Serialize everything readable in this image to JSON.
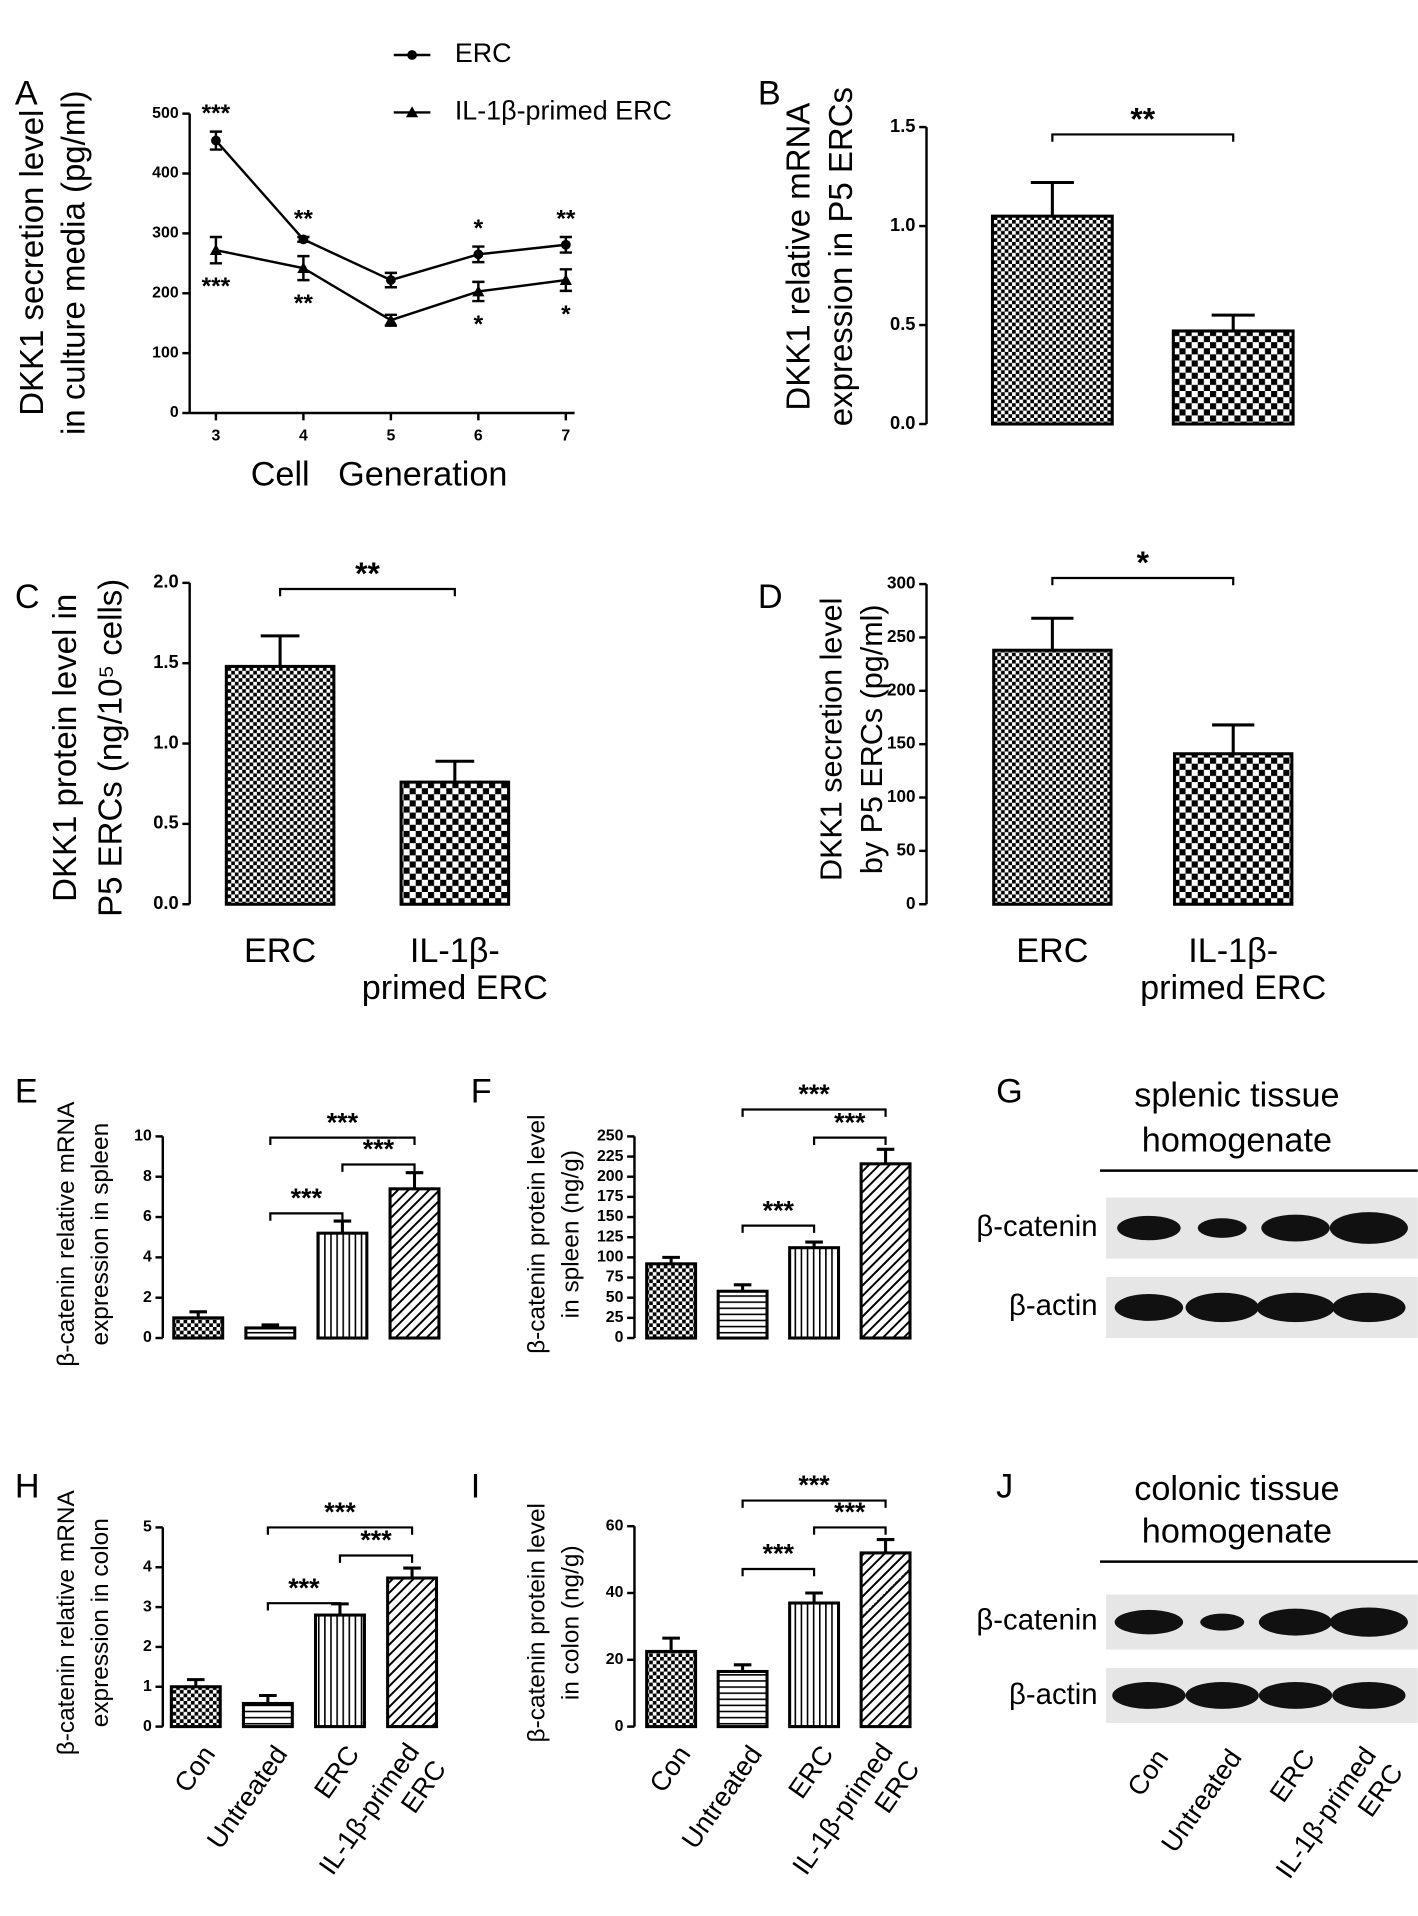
{
  "chart_data": [
    {
      "type": "line",
      "panel": "A",
      "y_label": [
        "DKK1 secretion level",
        "in culture media (pg/ml)"
      ],
      "x_label": "Cell   Generation",
      "x": [
        3,
        4,
        5,
        6,
        7
      ],
      "xlim": [
        2.7,
        7.1
      ],
      "xticks": [
        3,
        4,
        5,
        6,
        7
      ],
      "ylim": [
        0,
        500
      ],
      "yticks": [
        0,
        100,
        200,
        300,
        400,
        500
      ],
      "series": [
        {
          "name": "ERC",
          "marker": "circle",
          "color": "#000000",
          "values": [
            455,
            290,
            222,
            265,
            281
          ],
          "errors": [
            15,
            4,
            12,
            13,
            13
          ],
          "significance": [
            "***",
            "**",
            null,
            "*",
            "**"
          ]
        },
        {
          "name": "IL-1β-primed ERC",
          "marker": "triangle",
          "color": "#000000",
          "values": [
            272,
            242,
            155,
            203,
            222
          ],
          "errors": [
            22,
            20,
            9,
            16,
            18
          ],
          "significance": [
            "***",
            "**",
            null,
            "*",
            "*"
          ]
        }
      ]
    },
    {
      "type": "bar",
      "panel": "B",
      "y_label": [
        "DKK1 relative mRNA",
        "expression in P5 ERCs"
      ],
      "values": [
        1.05,
        0.47
      ],
      "errors": [
        0.17,
        0.08
      ],
      "ylim": [
        0,
        1.5
      ],
      "yticks": [
        {
          "value": 0,
          "label": "0.0"
        },
        {
          "value": 0.5,
          "label": "0.5"
        },
        {
          "value": 1,
          "label": "1.0"
        },
        {
          "value": 1.5,
          "label": "1.5"
        }
      ],
      "comparisons": [
        {
          "label": "**",
          "between": [
            0,
            1
          ]
        }
      ]
    },
    {
      "type": "bar",
      "panel": "C",
      "y_label": [
        "DKK1 protein level in",
        "P5 ERCs (ng/10⁵ cells)"
      ],
      "categories": [
        [
          "ERC"
        ],
        [
          "IL-1β-",
          "primed ERC"
        ]
      ],
      "values": [
        1.48,
        0.76
      ],
      "errors": [
        0.19,
        0.13
      ],
      "ylim": [
        0,
        2
      ],
      "yticks": [
        {
          "value": 0,
          "label": "0.0"
        },
        {
          "value": 0.5,
          "label": "0.5"
        },
        {
          "value": 1,
          "label": "1.0"
        },
        {
          "value": 1.5,
          "label": "1.5"
        },
        {
          "value": 2,
          "label": "2.0"
        }
      ],
      "comparisons": [
        {
          "label": "**",
          "between": [
            0,
            1
          ]
        }
      ]
    },
    {
      "type": "bar",
      "panel": "D",
      "y_label": [
        "DKK1 secretion level",
        "by P5 ERCs (pg/ml)"
      ],
      "categories": [
        [
          "ERC"
        ],
        [
          "IL-1β-",
          "primed ERC"
        ]
      ],
      "values": [
        238,
        141
      ],
      "errors": [
        30,
        27
      ],
      "ylim": [
        0,
        300
      ],
      "yticks": [
        0,
        50,
        100,
        150,
        200,
        250,
        300
      ],
      "comparisons": [
        {
          "label": "*",
          "between": [
            0,
            1
          ]
        }
      ]
    },
    {
      "type": "bar",
      "panel": "E",
      "y_label": [
        "β-catenin relative mRNA",
        "expression in spleen"
      ],
      "values": [
        1.0,
        0.5,
        5.2,
        7.4
      ],
      "errors": [
        0.3,
        0.15,
        0.6,
        0.8
      ],
      "ylim": [
        0,
        10
      ],
      "yticks": [
        0,
        2,
        4,
        6,
        8,
        10
      ],
      "comparisons": [
        {
          "label": "***",
          "between": [
            1,
            2
          ]
        },
        {
          "label": "***",
          "between": [
            2,
            3
          ]
        },
        {
          "label": "***",
          "between": [
            1,
            3
          ]
        }
      ]
    },
    {
      "type": "bar",
      "panel": "F",
      "y_label": [
        "β-catenin protein level",
        "in spleen (ng/g)"
      ],
      "values": [
        92,
        58,
        112,
        216
      ],
      "errors": [
        8,
        8,
        7,
        18
      ],
      "ylim": [
        0,
        250
      ],
      "yticks": [
        0,
        25,
        50,
        75,
        100,
        125,
        150,
        175,
        200,
        225,
        250
      ],
      "comparisons": [
        {
          "label": "***",
          "between": [
            1,
            2
          ]
        },
        {
          "label": "***",
          "between": [
            2,
            3
          ]
        },
        {
          "label": "***",
          "between": [
            1,
            3
          ]
        }
      ]
    },
    {
      "type": "bar",
      "panel": "H",
      "y_label": [
        "β-catenin relative mRNA",
        "expression in colon"
      ],
      "categories": [
        [
          "Con"
        ],
        [
          "Untreated"
        ],
        [
          "ERC"
        ],
        [
          "IL-1β-primed",
          "ERC"
        ]
      ],
      "values": [
        1.0,
        0.58,
        2.8,
        3.73
      ],
      "errors": [
        0.18,
        0.2,
        0.28,
        0.25
      ],
      "ylim": [
        0,
        5
      ],
      "yticks": [
        0,
        1,
        2,
        3,
        4,
        5
      ],
      "comparisons": [
        {
          "label": "***",
          "between": [
            1,
            2
          ]
        },
        {
          "label": "***",
          "between": [
            2,
            3
          ]
        },
        {
          "label": "***",
          "between": [
            1,
            3
          ]
        }
      ]
    },
    {
      "type": "bar",
      "panel": "I",
      "y_label": [
        "β-catenin protein level",
        "in colon (ng/g)"
      ],
      "categories": [
        [
          "Con"
        ],
        [
          "Untreated"
        ],
        [
          "ERC"
        ],
        [
          "IL-1β-primed",
          "ERC"
        ]
      ],
      "values": [
        22.5,
        16.5,
        37,
        52
      ],
      "errors": [
        4,
        2,
        3,
        4
      ],
      "ylim": [
        0,
        60
      ],
      "yticks": [
        0,
        20,
        40,
        60
      ],
      "comparisons": [
        {
          "label": "***",
          "between": [
            1,
            2
          ]
        },
        {
          "label": "***",
          "between": [
            2,
            3
          ]
        },
        {
          "label": "***",
          "between": [
            1,
            3
          ]
        }
      ]
    }
  ],
  "blots": [
    {
      "panel": "G",
      "title": [
        "splenic tissue",
        "homogenate"
      ],
      "rows": [
        "β-catenin",
        "β-actin"
      ]
    },
    {
      "panel": "J",
      "title": [
        "colonic tissue",
        "homogenate"
      ],
      "rows": [
        "β-catenin",
        "β-actin"
      ],
      "lanes": [
        [
          "Con"
        ],
        [
          "Untreated"
        ],
        [
          "ERC"
        ],
        [
          "IL-1β-primed",
          "ERC"
        ]
      ]
    }
  ]
}
